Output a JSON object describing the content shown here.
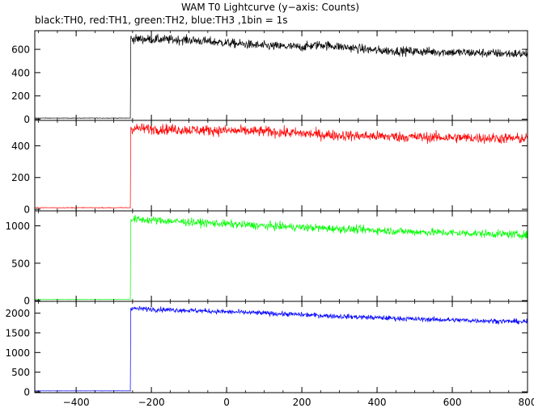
{
  "chart_data": {
    "type": "line",
    "title": "WAM T0 Lightcurve (y−axis: Counts)",
    "subtitle": "black:TH0, red:TH1, green:TH2, blue:TH3 ,1bin = 1s",
    "xlabel": "",
    "xlim": [
      -510,
      800
    ],
    "x_ticks": [
      -400,
      -200,
      0,
      200,
      400,
      600,
      800
    ],
    "x_tick_labels": [
      "−400",
      "−200",
      "0",
      "200",
      "400",
      "600",
      "800"
    ],
    "trigger_x": -255,
    "grid": false,
    "panels": [
      {
        "name": "TH0",
        "color": "#000000",
        "ylim": [
          -10,
          760
        ],
        "y_ticks": [
          0,
          200,
          400,
          600
        ],
        "y_tick_labels": [
          "0",
          "200",
          "400",
          "600"
        ],
        "pre_level": 10,
        "trend": [
          [
            -255,
            690
          ],
          [
            -100,
            680
          ],
          [
            100,
            630
          ],
          [
            200,
            620
          ],
          [
            250,
            640
          ],
          [
            400,
            590
          ],
          [
            600,
            575
          ],
          [
            800,
            560
          ]
        ],
        "noise": 28
      },
      {
        "name": "TH1",
        "color": "#ff0000",
        "ylim": [
          -10,
          560
        ],
        "y_ticks": [
          0,
          200,
          400
        ],
        "y_tick_labels": [
          "0",
          "200",
          "400"
        ],
        "pre_level": 10,
        "trend": [
          [
            -255,
            510
          ],
          [
            -100,
            500
          ],
          [
            100,
            490
          ],
          [
            300,
            465
          ],
          [
            500,
            455
          ],
          [
            800,
            445
          ]
        ],
        "noise": 24
      },
      {
        "name": "TH2",
        "color": "#00ff00",
        "ylim": [
          -10,
          1200
        ],
        "y_ticks": [
          0,
          500,
          1000
        ],
        "y_tick_labels": [
          "0",
          "500",
          "1000"
        ],
        "pre_level": 15,
        "trend": [
          [
            -255,
            1090
          ],
          [
            -100,
            1050
          ],
          [
            100,
            1000
          ],
          [
            300,
            960
          ],
          [
            500,
            920
          ],
          [
            800,
            880
          ]
        ],
        "noise": 38
      },
      {
        "name": "TH3",
        "color": "#0000ff",
        "ylim": [
          -20,
          2300
        ],
        "y_ticks": [
          0,
          500,
          1000,
          1500,
          2000
        ],
        "y_tick_labels": [
          "0",
          "500",
          "1000",
          "1500",
          "2000"
        ],
        "pre_level": 25,
        "trend": [
          [
            -255,
            2120
          ],
          [
            -100,
            2070
          ],
          [
            100,
            2000
          ],
          [
            300,
            1920
          ],
          [
            500,
            1850
          ],
          [
            800,
            1780
          ]
        ],
        "noise": 45
      }
    ]
  }
}
